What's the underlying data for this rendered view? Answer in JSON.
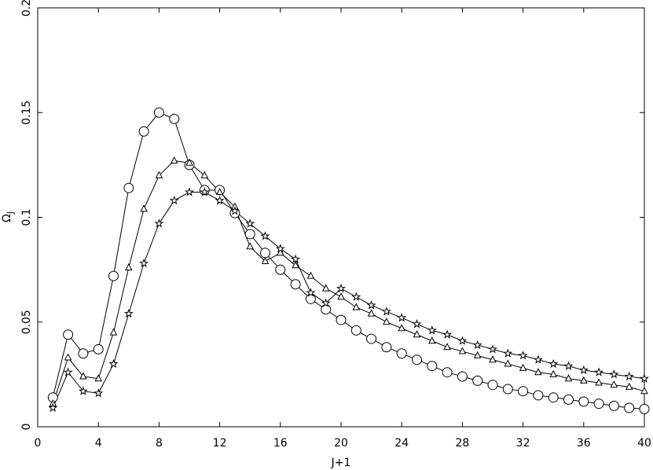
{
  "chart_data": {
    "type": "line",
    "title": "",
    "xlabel": "J+1",
    "ylabel": "Ω",
    "ylabel_subscript": "J",
    "xlim": [
      0,
      40
    ],
    "ylim": [
      0,
      0.2
    ],
    "xticks": [
      0,
      4,
      8,
      12,
      16,
      20,
      24,
      28,
      32,
      36,
      40
    ],
    "yticks": [
      0,
      0.05,
      0.1,
      0.15,
      0.2
    ],
    "ytick_labels": [
      "0",
      "0.05",
      "0.1",
      "0.15",
      "0.2"
    ],
    "grid": false,
    "legend": "none",
    "line_color": "#000000",
    "series": [
      {
        "marker": "circle",
        "x": [
          1,
          2,
          3,
          4,
          5,
          6,
          7,
          8,
          9,
          10,
          11,
          12,
          13,
          14,
          15,
          16,
          17,
          18,
          19,
          20,
          21,
          22,
          23,
          24,
          25,
          26,
          27,
          28,
          29,
          30,
          31,
          32,
          33,
          34,
          35,
          36,
          37,
          38,
          39,
          40
        ],
        "values": [
          0.014,
          0.044,
          0.035,
          0.037,
          0.072,
          0.114,
          0.141,
          0.15,
          0.147,
          0.125,
          0.113,
          0.113,
          0.102,
          0.092,
          0.083,
          0.075,
          0.068,
          0.061,
          0.056,
          0.051,
          0.046,
          0.042,
          0.038,
          0.035,
          0.032,
          0.029,
          0.026,
          0.024,
          0.022,
          0.02,
          0.018,
          0.017,
          0.015,
          0.014,
          0.013,
          0.012,
          0.011,
          0.01,
          0.009,
          0.0085
        ]
      },
      {
        "marker": "triangle",
        "x": [
          1,
          2,
          3,
          4,
          5,
          6,
          7,
          8,
          9,
          10,
          11,
          12,
          13,
          14,
          15,
          16,
          17,
          18,
          19,
          20,
          21,
          22,
          23,
          24,
          25,
          26,
          27,
          28,
          29,
          30,
          31,
          32,
          33,
          34,
          35,
          36,
          37,
          38,
          39,
          40
        ],
        "values": [
          0.011,
          0.033,
          0.024,
          0.023,
          0.045,
          0.076,
          0.104,
          0.12,
          0.127,
          0.126,
          0.12,
          0.112,
          0.105,
          0.086,
          0.079,
          0.083,
          0.077,
          0.072,
          0.066,
          0.062,
          0.057,
          0.054,
          0.05,
          0.047,
          0.044,
          0.041,
          0.038,
          0.036,
          0.034,
          0.032,
          0.03,
          0.028,
          0.026,
          0.025,
          0.023,
          0.022,
          0.021,
          0.02,
          0.019,
          0.017
        ]
      },
      {
        "marker": "star",
        "x": [
          1,
          2,
          3,
          4,
          5,
          6,
          7,
          8,
          9,
          10,
          11,
          12,
          13,
          14,
          15,
          16,
          17,
          18,
          19,
          20,
          21,
          22,
          23,
          24,
          25,
          26,
          27,
          28,
          29,
          30,
          31,
          32,
          33,
          34,
          35,
          36,
          37,
          38,
          39,
          40
        ],
        "values": [
          0.009,
          0.026,
          0.017,
          0.016,
          0.03,
          0.054,
          0.078,
          0.097,
          0.108,
          0.112,
          0.112,
          0.108,
          0.103,
          0.097,
          0.091,
          0.085,
          0.08,
          0.064,
          0.059,
          0.066,
          0.062,
          0.058,
          0.055,
          0.052,
          0.049,
          0.046,
          0.044,
          0.041,
          0.039,
          0.037,
          0.035,
          0.034,
          0.032,
          0.03,
          0.029,
          0.027,
          0.026,
          0.025,
          0.024,
          0.023
        ]
      }
    ]
  }
}
